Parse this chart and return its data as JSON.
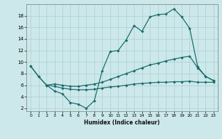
{
  "xlabel": "Humidex (Indice chaleur)",
  "bg_color": "#cce8ea",
  "grid_color": "#aacdd0",
  "line_color": "#1a6b6b",
  "xlim": [
    -0.5,
    23.5
  ],
  "ylim": [
    1.5,
    20.0
  ],
  "xticks": [
    0,
    1,
    2,
    3,
    4,
    5,
    6,
    7,
    8,
    9,
    10,
    11,
    12,
    13,
    14,
    15,
    16,
    17,
    18,
    19,
    20,
    21,
    22,
    23
  ],
  "yticks": [
    2,
    4,
    6,
    8,
    10,
    12,
    14,
    16,
    18
  ],
  "line1_x": [
    0,
    1,
    2,
    3,
    4,
    5,
    6,
    7,
    8,
    9,
    10,
    11,
    12,
    13,
    14,
    15,
    16,
    17,
    18,
    19,
    20,
    21,
    22,
    23
  ],
  "line1_y": [
    9.3,
    7.5,
    6.0,
    5.0,
    4.5,
    3.0,
    2.7,
    2.0,
    3.3,
    8.5,
    11.8,
    12.0,
    13.8,
    16.3,
    15.3,
    17.8,
    18.2,
    18.3,
    19.2,
    17.8,
    15.8,
    9.2,
    7.5,
    6.8
  ],
  "line2_x": [
    0,
    1,
    2,
    3,
    4,
    5,
    6,
    7,
    8,
    9,
    10,
    11,
    12,
    13,
    14,
    15,
    16,
    17,
    18,
    19,
    20,
    21,
    22,
    23
  ],
  "line2_y": [
    9.3,
    7.5,
    6.0,
    6.2,
    6.0,
    5.8,
    5.8,
    6.0,
    6.2,
    6.5,
    7.0,
    7.5,
    8.0,
    8.5,
    9.0,
    9.5,
    9.8,
    10.2,
    10.5,
    10.8,
    11.0,
    9.0,
    7.5,
    6.8
  ],
  "line3_x": [
    2,
    3,
    4,
    5,
    6,
    7,
    8,
    9,
    10,
    11,
    12,
    13,
    14,
    15,
    16,
    17,
    18,
    19,
    20,
    21,
    22,
    23
  ],
  "line3_y": [
    6.0,
    5.8,
    5.5,
    5.3,
    5.2,
    5.2,
    5.3,
    5.5,
    5.7,
    5.8,
    6.0,
    6.2,
    6.3,
    6.4,
    6.5,
    6.5,
    6.6,
    6.6,
    6.7,
    6.5,
    6.5,
    6.5
  ]
}
